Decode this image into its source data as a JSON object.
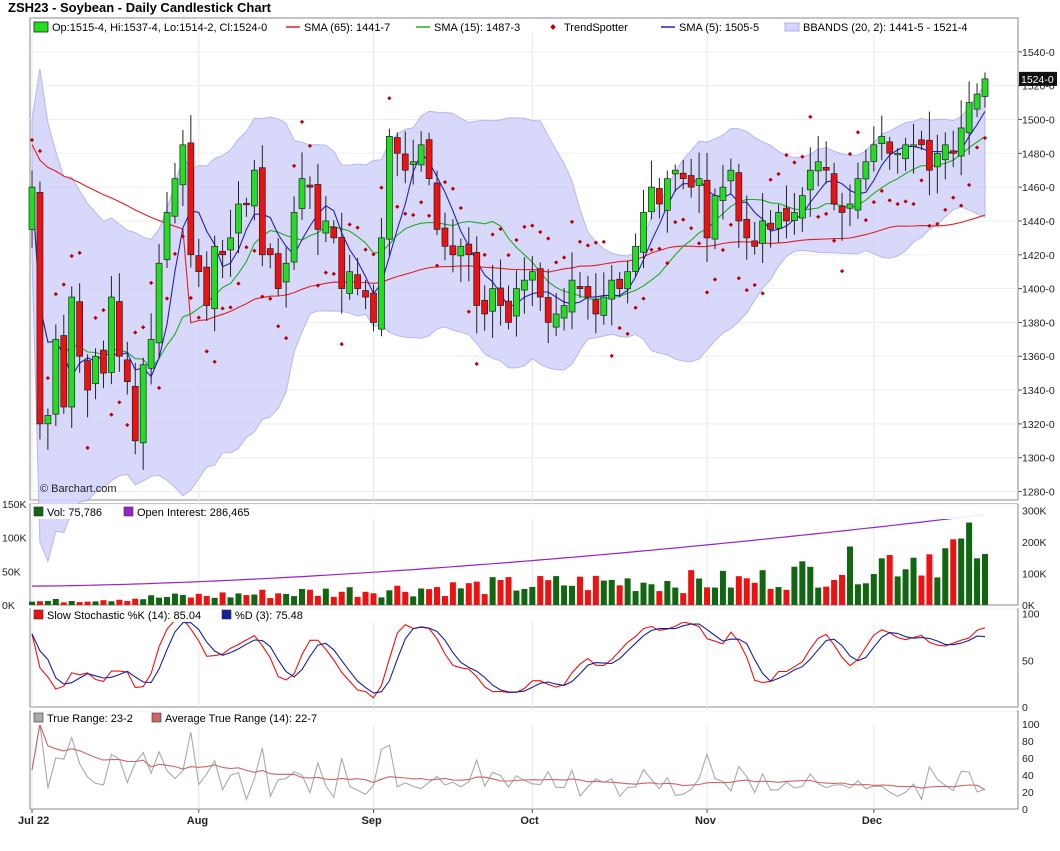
{
  "header": {
    "title": "ZSH23 - Soybean - Daily Candlestick Chart"
  },
  "colors": {
    "up": "#22dd22",
    "down": "#ee1111",
    "sma65": "#e02020",
    "sma15": "#22aa22",
    "sma5": "#2222bb",
    "trend": "#bb0000",
    "bband_fill": "#d4d4fb",
    "bband_line": "#b0b0f0",
    "vol_up": "#116611",
    "vol_down": "#ee1111",
    "oi": "#9922cc",
    "stoch_k": "#ee1111",
    "stoch_d": "#112299",
    "tr": "#aaaaaa",
    "atr": "#cc6666"
  },
  "chart_data": [
    {
      "type": "candlestick",
      "title": "ZSH23 - Soybean - Daily Candlestick Chart",
      "legend": [
        {
          "label": "Op:1515-4, Hi:1537-4, Lo:1514-2, Cl:1524-0",
          "swatch": "candle"
        },
        {
          "label": "SMA (65): 1441-7",
          "swatch": "line",
          "color": "#e02020"
        },
        {
          "label": "SMA (15): 1487-3",
          "swatch": "line",
          "color": "#22aa22"
        },
        {
          "label": "TrendSpotter",
          "swatch": "dot",
          "color": "#bb0000"
        },
        {
          "label": "SMA (5): 1505-5",
          "swatch": "line",
          "color": "#2222bb"
        },
        {
          "label": "BBANDS (20, 2): 1441-5 - 1521-4",
          "swatch": "band",
          "color": "#b0b0f0"
        }
      ],
      "ylim": [
        1275,
        1560
      ],
      "y_ticks": [
        "1540-0",
        "1520-0",
        "1500-0",
        "1480-0",
        "1460-0",
        "1440-0",
        "1420-0",
        "1400-0",
        "1380-0",
        "1360-0",
        "1340-0",
        "1320-0",
        "1300-0",
        "1280-0"
      ],
      "y_tick_values": [
        1540,
        1520,
        1500,
        1480,
        1460,
        1440,
        1420,
        1400,
        1380,
        1360,
        1340,
        1320,
        1300,
        1280
      ],
      "last_price_label": "1524-0",
      "last_price": 1524,
      "watermark": "© Barchart.com",
      "x_ticks": [
        {
          "label": "Jul 22",
          "index": 0
        },
        {
          "label": "Aug",
          "index": 21
        },
        {
          "label": "Sep",
          "index": 43
        },
        {
          "label": "Oct",
          "index": 63
        },
        {
          "label": "Nov",
          "index": 85
        },
        {
          "label": "Dec",
          "index": 106
        }
      ],
      "closes": [
        1460,
        1320,
        1325,
        1370,
        1330,
        1395,
        1360,
        1340,
        1360,
        1350,
        1395,
        1360,
        1345,
        1310,
        1355,
        1370,
        1415,
        1445,
        1465,
        1485,
        1420,
        1410,
        1390,
        1425,
        1420,
        1430,
        1450,
        1450,
        1470,
        1420,
        1420,
        1400,
        1415,
        1445,
        1465,
        1460,
        1435,
        1440,
        1430,
        1400,
        1410,
        1400,
        1395,
        1380,
        1430,
        1490,
        1480,
        1470,
        1475,
        1485,
        1465,
        1435,
        1425,
        1420,
        1425,
        1420,
        1390,
        1385,
        1400,
        1390,
        1380,
        1400,
        1405,
        1410,
        1395,
        1380,
        1385,
        1390,
        1405,
        1400,
        1395,
        1385,
        1395,
        1405,
        1400,
        1410,
        1425,
        1445,
        1460,
        1450,
        1465,
        1470,
        1465,
        1460,
        1465,
        1430,
        1455,
        1460,
        1470,
        1440,
        1430,
        1425,
        1440,
        1435,
        1445,
        1440,
        1445,
        1455,
        1470,
        1475,
        1470,
        1450,
        1445,
        1450,
        1465,
        1475,
        1485,
        1490,
        1480,
        1480,
        1485,
        1485,
        1485,
        1470,
        1480,
        1485,
        1480,
        1495,
        1510,
        1515,
        1524
      ],
      "sma5_end": 1505.5,
      "sma15_end": 1487.3,
      "sma65_end": 1441.7,
      "bband_upper_end": 1521.4,
      "bband_lower_end": 1441.5
    },
    {
      "type": "bar",
      "legend": [
        {
          "label": "Vol: 75,786",
          "swatch": "square",
          "color": "#116611"
        },
        {
          "label": "Open Interest: 286,465",
          "swatch": "square",
          "color": "#9922cc"
        }
      ],
      "left_ticks": [
        "150K",
        "100K",
        "50K",
        "0K"
      ],
      "left_tick_values": [
        150000,
        100000,
        50000,
        0
      ],
      "right_ticks": [
        "300K",
        "200K",
        "100K",
        "0K"
      ],
      "right_tick_values": [
        300000,
        200000,
        100000,
        0
      ],
      "volume_start": 5000,
      "volume_mid": 35000,
      "volume_end": 75786,
      "oi_start": 60000,
      "oi_end": 286465
    },
    {
      "type": "line",
      "legend": [
        {
          "label": "Slow Stochastic %K (14): 85.04",
          "swatch": "square",
          "color": "#ee1111"
        },
        {
          "label": "%D (3): 75.48",
          "swatch": "square",
          "color": "#112299"
        }
      ],
      "right_ticks": [
        "100",
        "50",
        "0"
      ],
      "right_tick_values": [
        100,
        50,
        0
      ],
      "k_end": 85.04,
      "d_end": 75.48
    },
    {
      "type": "line",
      "legend": [
        {
          "label": "True Range: 23-2",
          "swatch": "square",
          "color": "#aaaaaa"
        },
        {
          "label": "Average True Range (14): 22-7",
          "swatch": "square",
          "color": "#cc6666"
        }
      ],
      "right_ticks": [
        "100",
        "80",
        "60",
        "40",
        "20",
        "0"
      ],
      "right_tick_values": [
        100,
        80,
        60,
        40,
        20,
        0
      ],
      "tr_end": 23.2,
      "atr_end": 22.7
    }
  ]
}
